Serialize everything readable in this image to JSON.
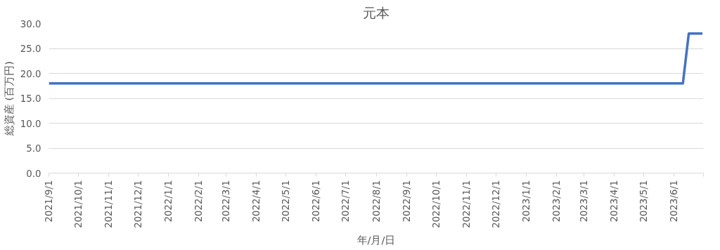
{
  "chart_data": {
    "type": "line",
    "title": "元本",
    "xlabel": "年/月/日",
    "ylabel": "総資産 (百万円)",
    "x": [
      "2021-09-01",
      "2023-06-10",
      "2023-06-16",
      "2023-06-30"
    ],
    "series": [
      {
        "color": "#4472c4",
        "values": [
          18,
          18,
          28,
          28
        ]
      }
    ],
    "xlim": [
      "2021-09-01",
      "2023-07-01"
    ],
    "xticks": [
      {
        "value": "2021-09-01",
        "label": "2021/9/1"
      },
      {
        "value": "2021-10-01",
        "label": "2021/10/1"
      },
      {
        "value": "2021-11-01",
        "label": "2021/11/1"
      },
      {
        "value": "2021-12-01",
        "label": "2021/12/1"
      },
      {
        "value": "2022-01-01",
        "label": "2022/1/1"
      },
      {
        "value": "2022-02-01",
        "label": "2022/2/1"
      },
      {
        "value": "2022-03-01",
        "label": "2022/3/1"
      },
      {
        "value": "2022-04-01",
        "label": "2022/4/1"
      },
      {
        "value": "2022-05-01",
        "label": "2022/5/1"
      },
      {
        "value": "2022-06-01",
        "label": "2022/6/1"
      },
      {
        "value": "2022-07-01",
        "label": "2022/7/1"
      },
      {
        "value": "2022-08-01",
        "label": "2022/8/1"
      },
      {
        "value": "2022-09-01",
        "label": "2022/9/1"
      },
      {
        "value": "2022-10-01",
        "label": "2022/10/1"
      },
      {
        "value": "2022-11-01",
        "label": "2022/11/1"
      },
      {
        "value": "2022-12-01",
        "label": "2022/12/1"
      },
      {
        "value": "2023-01-01",
        "label": "2023/1/1"
      },
      {
        "value": "2023-02-01",
        "label": "2023/2/1"
      },
      {
        "value": "2023-03-01",
        "label": "2023/3/1"
      },
      {
        "value": "2023-04-01",
        "label": "2023/4/1"
      },
      {
        "value": "2023-05-01",
        "label": "2023/5/1"
      },
      {
        "value": "2023-06-01",
        "label": "2023/6/1"
      },
      {
        "value": "2023-07-01",
        "label": null
      }
    ],
    "ylim": [
      0,
      30
    ],
    "yticks": [
      {
        "value": 0,
        "label": "0.0"
      },
      {
        "value": 5,
        "label": "5.0"
      },
      {
        "value": 10,
        "label": "10.0"
      },
      {
        "value": 15,
        "label": "15.0"
      },
      {
        "value": 20,
        "label": "20.0"
      },
      {
        "value": 25,
        "label": "25.0"
      },
      {
        "value": 30,
        "label": "30.0"
      }
    ],
    "grid": "y",
    "marker": "none",
    "line_style": "solid"
  }
}
